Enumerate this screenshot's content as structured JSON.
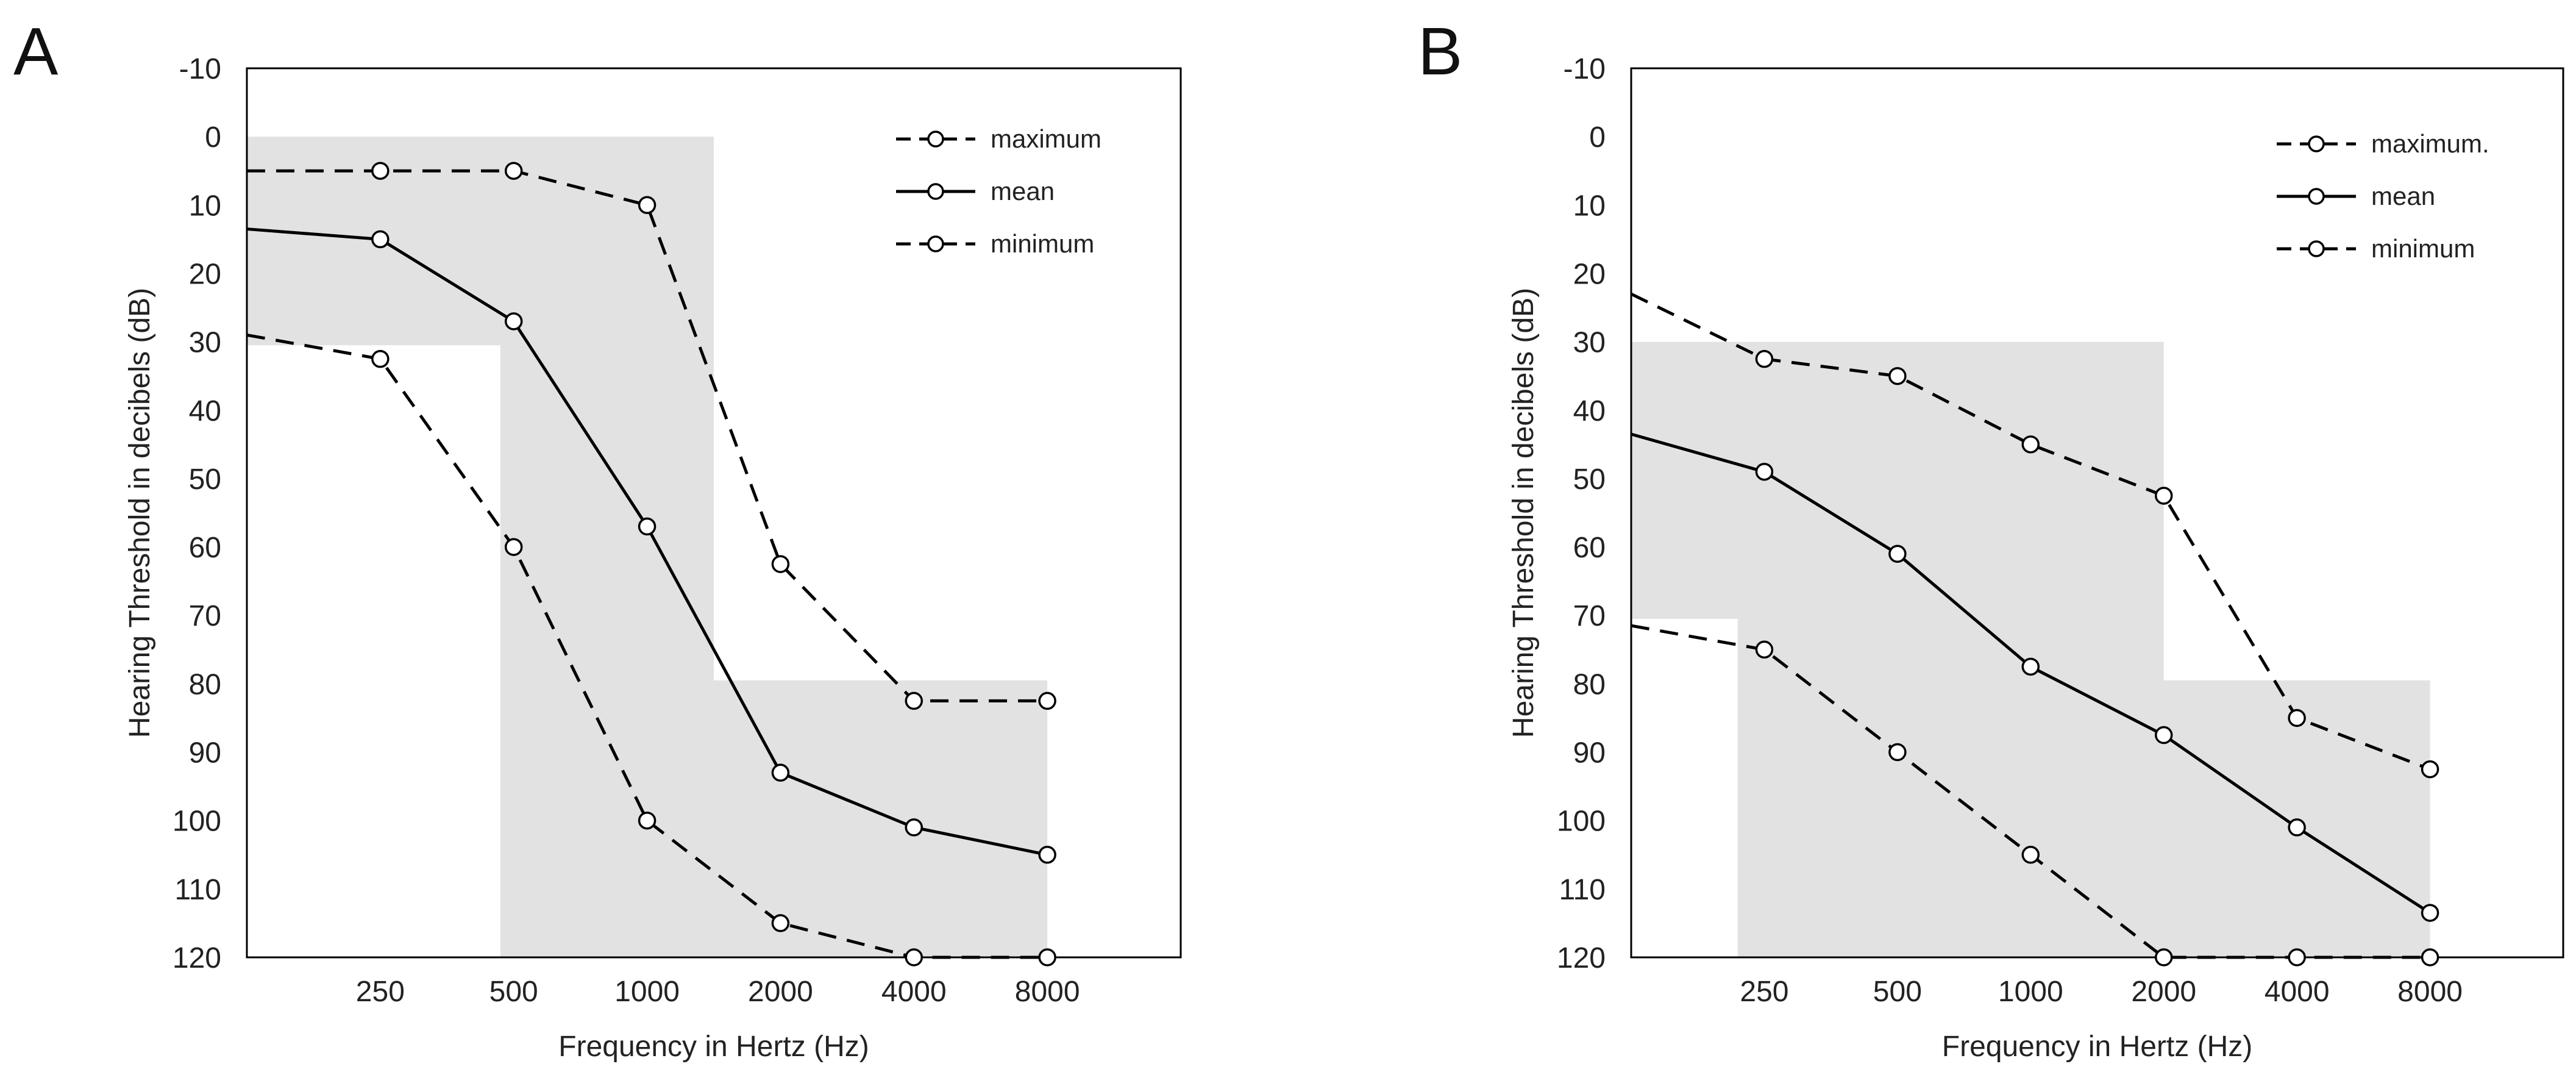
{
  "chart_data": [
    {
      "type": "line",
      "panel_label": "A",
      "x_categories": [
        "250",
        "500",
        "1000",
        "2000",
        "4000",
        "8000"
      ],
      "xlabel": "Frequency in Hertz (Hz)",
      "ylabel": "Hearing Threshold in decibels (dB)",
      "y_ticks": [
        "-10",
        "0",
        "10",
        "20",
        "30",
        "40",
        "50",
        "60",
        "70",
        "80",
        "90",
        "100",
        "110",
        "120"
      ],
      "ylim": [
        -10,
        120
      ],
      "y_inverted": true,
      "xlim": [
        0,
        7
      ],
      "grid": false,
      "legend_position": "top-right",
      "shaded_region": {
        "color": "#e2e2e2",
        "outline": [
          [
            0,
            0
          ],
          [
            3.5,
            0
          ],
          [
            3.5,
            79.5
          ],
          [
            6,
            79.5
          ],
          [
            6,
            120
          ],
          [
            1.9,
            120
          ],
          [
            1.9,
            30.5
          ],
          [
            0,
            30.5
          ]
        ]
      },
      "series": [
        {
          "name": "maximum",
          "style": "dashed",
          "x": [
            0,
            1,
            2,
            3,
            4,
            5,
            6
          ],
          "values": [
            5,
            5,
            5,
            10,
            62.5,
            82.5,
            82.5
          ],
          "marker_x": [
            1,
            2,
            3,
            4,
            5,
            6
          ],
          "marker_values": [
            5,
            5,
            10,
            62.5,
            82.5,
            82.5
          ]
        },
        {
          "name": "mean",
          "style": "solid",
          "x": [
            0,
            1,
            2,
            3,
            4,
            5,
            6
          ],
          "values": [
            13.5,
            15,
            27,
            57,
            93,
            101,
            105
          ],
          "marker_x": [
            1,
            2,
            3,
            4,
            5,
            6
          ],
          "marker_values": [
            15,
            27,
            57,
            93,
            101,
            105
          ]
        },
        {
          "name": "minimum",
          "style": "dashed",
          "x": [
            0,
            1,
            2,
            3,
            4,
            5,
            6
          ],
          "values": [
            29,
            32.5,
            60,
            100,
            115,
            120,
            120
          ],
          "marker_x": [
            1,
            2,
            3,
            4,
            5,
            6
          ],
          "marker_values": [
            32.5,
            60,
            100,
            115,
            120,
            120
          ]
        }
      ]
    },
    {
      "type": "line",
      "panel_label": "B",
      "x_categories": [
        "250",
        "500",
        "1000",
        "2000",
        "4000",
        "8000"
      ],
      "xlabel": "Frequency in Hertz (Hz)",
      "ylabel": "Hearing Threshold in decibels (dB)",
      "y_ticks": [
        "-10",
        "0",
        "10",
        "20",
        "30",
        "40",
        "50",
        "60",
        "70",
        "80",
        "90",
        "100",
        "110",
        "120"
      ],
      "ylim": [
        -10,
        120
      ],
      "y_inverted": true,
      "xlim": [
        0,
        7
      ],
      "grid": false,
      "legend_position": "top-right",
      "shaded_region": {
        "color": "#e2e2e2",
        "outline": [
          [
            0,
            30
          ],
          [
            4,
            30
          ],
          [
            4,
            79.5
          ],
          [
            6,
            79.5
          ],
          [
            6,
            120
          ],
          [
            0.8,
            120
          ],
          [
            0.8,
            70.5
          ],
          [
            0,
            70.5
          ]
        ]
      },
      "series": [
        {
          "name": "maximum.",
          "style": "dashed",
          "x": [
            0,
            1,
            2,
            3,
            4,
            5,
            6
          ],
          "values": [
            23,
            32.5,
            35,
            45,
            52.5,
            85,
            92.5
          ],
          "marker_x": [
            1,
            2,
            3,
            4,
            5,
            6
          ],
          "marker_values": [
            32.5,
            35,
            45,
            52.5,
            85,
            92.5
          ]
        },
        {
          "name": "mean",
          "style": "solid",
          "x": [
            0,
            1,
            2,
            3,
            4,
            5,
            6
          ],
          "values": [
            43.5,
            49,
            61,
            77.5,
            87.5,
            101,
            113.5
          ],
          "marker_x": [
            1,
            2,
            3,
            4,
            5,
            6
          ],
          "marker_values": [
            49,
            61,
            77.5,
            87.5,
            101,
            113.5
          ]
        },
        {
          "name": "minimum",
          "style": "dashed",
          "x": [
            0,
            1,
            2,
            3,
            4,
            5,
            6
          ],
          "values": [
            71.5,
            75,
            90,
            105,
            120,
            120,
            120
          ],
          "marker_x": [
            1,
            2,
            3,
            4,
            5,
            6
          ],
          "marker_values": [
            75,
            90,
            105,
            120,
            120,
            120
          ]
        }
      ]
    }
  ]
}
